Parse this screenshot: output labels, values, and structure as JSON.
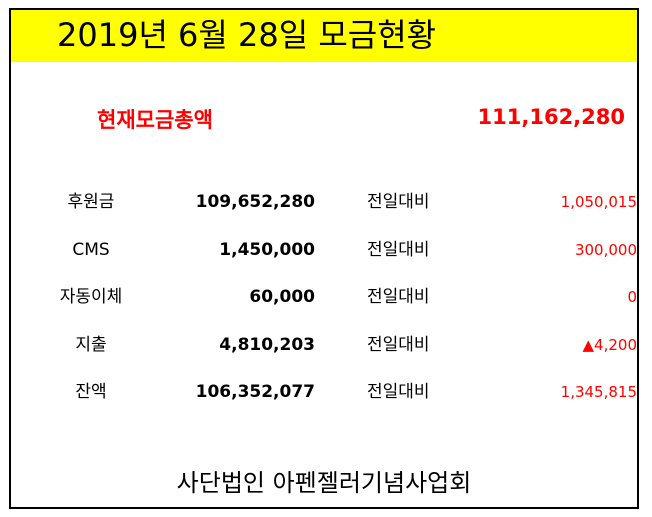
{
  "header": {
    "title": "2019년 6월 28일 모금현황"
  },
  "total": {
    "label": "현재모금총액",
    "value": "111,162,280"
  },
  "rows": [
    {
      "label": "후원금",
      "value": "109,652,280",
      "compare_label": "전일대비",
      "triangle": "",
      "change": "1,050,015"
    },
    {
      "label": "CMS",
      "value": "1,450,000",
      "compare_label": "전일대비",
      "triangle": "",
      "change": "300,000"
    },
    {
      "label": "자동이체",
      "value": "60,000",
      "compare_label": "전일대비",
      "triangle": "",
      "change": "0"
    },
    {
      "label": "지출",
      "value": "4,810,203",
      "compare_label": "전일대비",
      "triangle": "▲",
      "change": "4,200"
    },
    {
      "label": "잔액",
      "value": "106,352,077",
      "compare_label": "전일대비",
      "triangle": "",
      "change": "1,345,815"
    }
  ],
  "footer": {
    "organization": "사단법인 아펜젤러기념사업회"
  },
  "colors": {
    "header_background": "#ffff00",
    "accent_red": "#ff0000",
    "text": "#000000",
    "border": "#000000"
  }
}
